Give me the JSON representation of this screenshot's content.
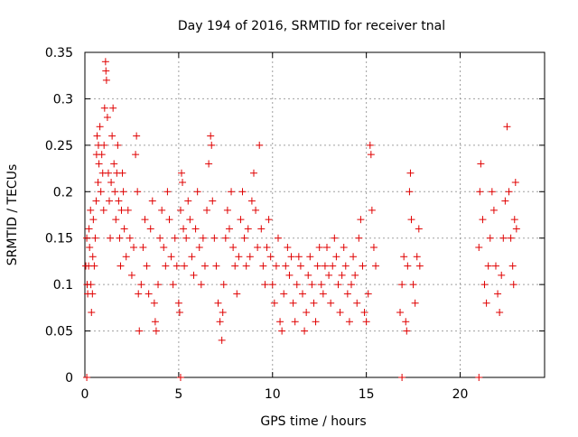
{
  "chart_data": {
    "type": "scatter",
    "title": "Day 194 of 2016, SRMTID for receiver tnal",
    "xlabel": "GPS time / hours",
    "ylabel": "SRMTID / TECUs",
    "xlim": [
      0,
      24.5
    ],
    "ylim": [
      0,
      0.35
    ],
    "x_ticks": [
      0,
      5,
      10,
      15,
      20
    ],
    "y_ticks": [
      0,
      0.05,
      0.1,
      0.15,
      0.2,
      0.25,
      0.3,
      0.35
    ],
    "x_tick_labels": [
      "0",
      "5",
      "10",
      "15",
      "20"
    ],
    "y_tick_labels": [
      "0",
      "0.05",
      "0.1",
      "0.15",
      "0.2",
      "0.25",
      "0.3",
      "0.35"
    ],
    "grid": true,
    "marker": "+",
    "color": "#e00000",
    "series": [
      {
        "values": [
          [
            0.05,
            0.12
          ],
          [
            0.1,
            0.15
          ],
          [
            0.12,
            0.1
          ],
          [
            0.15,
            0.09
          ],
          [
            0.2,
            0.12
          ],
          [
            0.22,
            0.16
          ],
          [
            0.25,
            0.14
          ],
          [
            0.3,
            0.18
          ],
          [
            0.32,
            0.1
          ],
          [
            0.35,
            0.07
          ],
          [
            0.4,
            0.09
          ],
          [
            0.42,
            0.13
          ],
          [
            0.45,
            0.17
          ],
          [
            0.5,
            0.12
          ],
          [
            0.55,
            0.15
          ],
          [
            0.6,
            0.19
          ],
          [
            0.62,
            0.24
          ],
          [
            0.65,
            0.26
          ],
          [
            0.7,
            0.21
          ],
          [
            0.72,
            0.25
          ],
          [
            0.75,
            0.23
          ],
          [
            0.8,
            0.27
          ],
          [
            0.85,
            0.2
          ],
          [
            0.9,
            0.24
          ],
          [
            0.95,
            0.22
          ],
          [
            1.0,
            0.18
          ],
          [
            1.02,
            0.25
          ],
          [
            1.05,
            0.29
          ],
          [
            1.1,
            0.34
          ],
          [
            1.12,
            0.33
          ],
          [
            1.15,
            0.32
          ],
          [
            1.2,
            0.28
          ],
          [
            1.25,
            0.22
          ],
          [
            1.3,
            0.19
          ],
          [
            1.35,
            0.15
          ],
          [
            1.4,
            0.21
          ],
          [
            1.45,
            0.26
          ],
          [
            1.5,
            0.29
          ],
          [
            1.55,
            0.23
          ],
          [
            1.6,
            0.2
          ],
          [
            1.65,
            0.17
          ],
          [
            1.7,
            0.22
          ],
          [
            1.75,
            0.25
          ],
          [
            1.8,
            0.19
          ],
          [
            1.85,
            0.15
          ],
          [
            1.9,
            0.12
          ],
          [
            1.95,
            0.18
          ],
          [
            2.0,
            0.22
          ],
          [
            2.05,
            0.2
          ],
          [
            2.1,
            0.16
          ],
          [
            2.2,
            0.13
          ],
          [
            2.3,
            0.18
          ],
          [
            2.4,
            0.15
          ],
          [
            2.5,
            0.11
          ],
          [
            2.6,
            0.14
          ],
          [
            2.7,
            0.24
          ],
          [
            2.75,
            0.26
          ],
          [
            2.8,
            0.2
          ],
          [
            2.85,
            0.09
          ],
          [
            2.9,
            0.05
          ],
          [
            3.0,
            0.1
          ],
          [
            3.1,
            0.14
          ],
          [
            3.2,
            0.17
          ],
          [
            3.3,
            0.12
          ],
          [
            3.4,
            0.09
          ],
          [
            3.5,
            0.16
          ],
          [
            3.6,
            0.19
          ],
          [
            3.7,
            0.08
          ],
          [
            3.75,
            0.06
          ],
          [
            3.8,
            0.05
          ],
          [
            3.9,
            0.1
          ],
          [
            4.0,
            0.15
          ],
          [
            4.1,
            0.18
          ],
          [
            4.2,
            0.14
          ],
          [
            4.3,
            0.12
          ],
          [
            4.4,
            0.2
          ],
          [
            4.5,
            0.17
          ],
          [
            4.6,
            0.13
          ],
          [
            4.7,
            0.1
          ],
          [
            4.8,
            0.15
          ],
          [
            4.9,
            0.12
          ],
          [
            5.0,
            0.08
          ],
          [
            5.05,
            0.07
          ],
          [
            5.1,
            0.18
          ],
          [
            5.15,
            0.22
          ],
          [
            5.2,
            0.21
          ],
          [
            5.25,
            0.16
          ],
          [
            5.3,
            0.12
          ],
          [
            5.4,
            0.15
          ],
          [
            5.5,
            0.19
          ],
          [
            5.6,
            0.17
          ],
          [
            5.7,
            0.13
          ],
          [
            5.8,
            0.11
          ],
          [
            5.9,
            0.16
          ],
          [
            6.0,
            0.2
          ],
          [
            6.1,
            0.14
          ],
          [
            6.2,
            0.1
          ],
          [
            6.3,
            0.15
          ],
          [
            6.4,
            0.12
          ],
          [
            6.5,
            0.18
          ],
          [
            6.6,
            0.23
          ],
          [
            6.7,
            0.26
          ],
          [
            6.75,
            0.25
          ],
          [
            6.8,
            0.19
          ],
          [
            6.9,
            0.15
          ],
          [
            7.0,
            0.12
          ],
          [
            7.1,
            0.08
          ],
          [
            7.2,
            0.06
          ],
          [
            7.3,
            0.04
          ],
          [
            7.35,
            0.07
          ],
          [
            7.4,
            0.1
          ],
          [
            7.5,
            0.15
          ],
          [
            7.6,
            0.18
          ],
          [
            7.7,
            0.16
          ],
          [
            7.8,
            0.2
          ],
          [
            7.9,
            0.14
          ],
          [
            8.0,
            0.12
          ],
          [
            8.1,
            0.09
          ],
          [
            8.2,
            0.13
          ],
          [
            8.3,
            0.17
          ],
          [
            8.4,
            0.2
          ],
          [
            8.5,
            0.15
          ],
          [
            8.6,
            0.12
          ],
          [
            8.7,
            0.16
          ],
          [
            8.8,
            0.13
          ],
          [
            8.9,
            0.19
          ],
          [
            9.0,
            0.22
          ],
          [
            9.1,
            0.18
          ],
          [
            9.2,
            0.14
          ],
          [
            9.3,
            0.25
          ],
          [
            9.4,
            0.16
          ],
          [
            9.5,
            0.12
          ],
          [
            9.6,
            0.1
          ],
          [
            9.7,
            0.14
          ],
          [
            9.8,
            0.17
          ],
          [
            9.9,
            0.13
          ],
          [
            10.0,
            0.1
          ],
          [
            10.1,
            0.08
          ],
          [
            10.2,
            0.12
          ],
          [
            10.3,
            0.15
          ],
          [
            10.4,
            0.06
          ],
          [
            10.5,
            0.05
          ],
          [
            10.6,
            0.09
          ],
          [
            10.7,
            0.12
          ],
          [
            10.8,
            0.14
          ],
          [
            10.9,
            0.11
          ],
          [
            11.0,
            0.13
          ],
          [
            11.1,
            0.08
          ],
          [
            11.2,
            0.06
          ],
          [
            11.3,
            0.1
          ],
          [
            11.4,
            0.13
          ],
          [
            11.5,
            0.12
          ],
          [
            11.6,
            0.09
          ],
          [
            11.7,
            0.05
          ],
          [
            11.8,
            0.07
          ],
          [
            11.9,
            0.11
          ],
          [
            12.0,
            0.13
          ],
          [
            12.1,
            0.1
          ],
          [
            12.2,
            0.08
          ],
          [
            12.3,
            0.06
          ],
          [
            12.4,
            0.12
          ],
          [
            12.5,
            0.14
          ],
          [
            12.6,
            0.1
          ],
          [
            12.7,
            0.09
          ],
          [
            12.8,
            0.12
          ],
          [
            12.9,
            0.14
          ],
          [
            13.0,
            0.11
          ],
          [
            13.1,
            0.08
          ],
          [
            13.2,
            0.12
          ],
          [
            13.3,
            0.15
          ],
          [
            13.4,
            0.13
          ],
          [
            13.5,
            0.1
          ],
          [
            13.6,
            0.07
          ],
          [
            13.7,
            0.11
          ],
          [
            13.8,
            0.14
          ],
          [
            13.9,
            0.12
          ],
          [
            14.0,
            0.09
          ],
          [
            14.1,
            0.06
          ],
          [
            14.2,
            0.1
          ],
          [
            14.3,
            0.13
          ],
          [
            14.4,
            0.11
          ],
          [
            14.5,
            0.08
          ],
          [
            14.6,
            0.15
          ],
          [
            14.7,
            0.17
          ],
          [
            14.8,
            0.12
          ],
          [
            14.9,
            0.07
          ],
          [
            15.0,
            0.06
          ],
          [
            15.1,
            0.09
          ],
          [
            15.2,
            0.25
          ],
          [
            15.25,
            0.24
          ],
          [
            15.3,
            0.18
          ],
          [
            15.4,
            0.14
          ],
          [
            15.5,
            0.12
          ],
          [
            16.8,
            0.07
          ],
          [
            16.9,
            0.1
          ],
          [
            17.0,
            0.13
          ],
          [
            17.1,
            0.06
          ],
          [
            17.15,
            0.05
          ],
          [
            17.2,
            0.12
          ],
          [
            17.3,
            0.2
          ],
          [
            17.35,
            0.22
          ],
          [
            17.4,
            0.17
          ],
          [
            17.5,
            0.1
          ],
          [
            17.6,
            0.08
          ],
          [
            17.7,
            0.13
          ],
          [
            17.8,
            0.16
          ],
          [
            17.85,
            0.12
          ],
          [
            21.0,
            0.14
          ],
          [
            21.05,
            0.2
          ],
          [
            21.1,
            0.23
          ],
          [
            21.2,
            0.17
          ],
          [
            21.3,
            0.1
          ],
          [
            21.4,
            0.08
          ],
          [
            21.5,
            0.12
          ],
          [
            21.6,
            0.15
          ],
          [
            21.7,
            0.2
          ],
          [
            21.8,
            0.18
          ],
          [
            21.9,
            0.12
          ],
          [
            22.0,
            0.09
          ],
          [
            22.1,
            0.07
          ],
          [
            22.2,
            0.11
          ],
          [
            22.3,
            0.15
          ],
          [
            22.4,
            0.19
          ],
          [
            22.5,
            0.27
          ],
          [
            22.6,
            0.2
          ],
          [
            22.7,
            0.15
          ],
          [
            22.8,
            0.12
          ],
          [
            22.85,
            0.1
          ],
          [
            22.9,
            0.17
          ],
          [
            22.95,
            0.21
          ],
          [
            23.0,
            0.16
          ]
        ]
      },
      {
        "values": [
          [
            0.1,
            0.0
          ],
          [
            5.1,
            0.0
          ],
          [
            16.9,
            0.0
          ],
          [
            21.0,
            0.0
          ]
        ]
      }
    ]
  }
}
